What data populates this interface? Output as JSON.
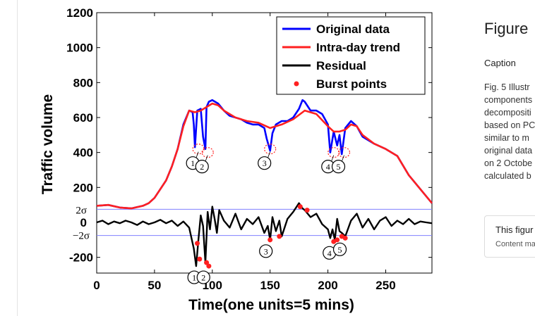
{
  "side_panel": {
    "title": "Figure",
    "caption_label": "Caption",
    "caption_lines": [
      "Fig. 5 Illustr",
      "components",
      "decompositi",
      "based on PC",
      "similar to m",
      "original data",
      "on 2 Octobe",
      "calculated b"
    ],
    "note_main": "This figur",
    "note_sub": "Content ma"
  },
  "chart_data": {
    "type": "line",
    "xlabel": "Time(one units=5 mins)",
    "ylabel": "Traffic volume",
    "xlim": [
      0,
      290
    ],
    "ylim": [
      -290,
      1200
    ],
    "xticks": [
      0,
      50,
      100,
      150,
      200,
      250
    ],
    "yticks": [
      -200,
      0,
      200,
      400,
      600,
      800,
      1000,
      1200
    ],
    "tick_labels_y": [
      "-200",
      "0",
      "200",
      "400",
      "600",
      "800",
      "1000",
      "1200"
    ],
    "tick_labels_x": [
      "0",
      "50",
      "100",
      "150",
      "200",
      "250"
    ],
    "sigma_labels": [
      "2σ",
      "−2σ"
    ],
    "sigma_level": 75,
    "legend": [
      "Original data",
      "Intra-day trend",
      "Residual",
      "Burst points"
    ],
    "legend_position": "top-right",
    "colors": {
      "original": "#0000ff",
      "trend": "#ff2020",
      "residual": "#000000",
      "burst": "#ff2020",
      "sigma": "#8080ff"
    },
    "series": [
      {
        "name": "Original data",
        "x": [
          0,
          10,
          20,
          30,
          40,
          45,
          50,
          55,
          60,
          65,
          70,
          75,
          80,
          83,
          84,
          85,
          87,
          90,
          92,
          94,
          95,
          97,
          100,
          105,
          110,
          115,
          120,
          125,
          130,
          135,
          140,
          145,
          147,
          150,
          152,
          155,
          160,
          165,
          170,
          175,
          178,
          180,
          185,
          190,
          195,
          200,
          202,
          205,
          208,
          210,
          212,
          215,
          220,
          225,
          230,
          240,
          250,
          260,
          270,
          280,
          290
        ],
        "y": [
          95,
          100,
          85,
          80,
          95,
          110,
          140,
          190,
          240,
          320,
          420,
          560,
          640,
          630,
          560,
          430,
          640,
          650,
          490,
          420,
          660,
          690,
          700,
          680,
          640,
          610,
          600,
          590,
          570,
          560,
          560,
          540,
          480,
          410,
          510,
          560,
          580,
          580,
          600,
          650,
          700,
          690,
          640,
          640,
          620,
          560,
          400,
          520,
          440,
          500,
          390,
          540,
          580,
          550,
          490,
          450,
          420,
          380,
          270,
          190,
          110
        ]
      },
      {
        "name": "Intra-day trend",
        "x": [
          0,
          10,
          20,
          30,
          40,
          45,
          50,
          55,
          60,
          65,
          70,
          75,
          80,
          85,
          90,
          95,
          100,
          105,
          110,
          120,
          130,
          140,
          150,
          160,
          170,
          180,
          190,
          200,
          205,
          210,
          215,
          220,
          225,
          230,
          240,
          250,
          260,
          270,
          280,
          290
        ],
        "y": [
          95,
          100,
          85,
          80,
          95,
          110,
          140,
          190,
          240,
          320,
          420,
          550,
          640,
          630,
          640,
          660,
          680,
          670,
          640,
          600,
          580,
          570,
          540,
          560,
          590,
          640,
          620,
          550,
          520,
          520,
          530,
          560,
          550,
          500,
          450,
          420,
          380,
          270,
          190,
          110
        ]
      },
      {
        "name": "Residual",
        "x": [
          0,
          5,
          10,
          15,
          20,
          25,
          30,
          35,
          40,
          45,
          50,
          55,
          60,
          65,
          70,
          75,
          80,
          84,
          86,
          88,
          90,
          92,
          94,
          96,
          98,
          100,
          102,
          104,
          106,
          110,
          115,
          120,
          125,
          130,
          135,
          140,
          145,
          148,
          150,
          152,
          155,
          158,
          160,
          165,
          170,
          175,
          178,
          180,
          185,
          190,
          195,
          200,
          202,
          204,
          206,
          208,
          210,
          212,
          215,
          220,
          225,
          230,
          235,
          240,
          245,
          250,
          255,
          260,
          265,
          270,
          275,
          280,
          285,
          290
        ],
        "y": [
          0,
          10,
          -10,
          5,
          -5,
          10,
          0,
          -15,
          5,
          -10,
          0,
          15,
          -5,
          10,
          -20,
          5,
          -30,
          -150,
          -250,
          -100,
          40,
          -20,
          -230,
          60,
          -40,
          90,
          20,
          -60,
          70,
          10,
          -30,
          50,
          -40,
          20,
          -10,
          30,
          -60,
          -20,
          -100,
          30,
          -50,
          10,
          -80,
          20,
          60,
          110,
          80,
          70,
          30,
          50,
          -10,
          -40,
          -90,
          -40,
          -100,
          20,
          -50,
          -60,
          -80,
          10,
          50,
          -30,
          20,
          -40,
          10,
          30,
          -20,
          10,
          -10,
          20,
          -10,
          5,
          0,
          -5
        ]
      },
      {
        "name": "Burst points",
        "x": [
          87,
          89,
          95,
          97,
          150,
          158,
          176,
          182,
          205,
          208,
          212,
          215
        ],
        "y": [
          -120,
          -210,
          -230,
          -250,
          -100,
          -80,
          90,
          70,
          -110,
          -100,
          -80,
          -90
        ]
      }
    ],
    "annotations": [
      {
        "label": "1",
        "series_x": 88,
        "upper_y": 420,
        "lower_y": -250
      },
      {
        "label": "2",
        "series_x": 96,
        "upper_y": 400,
        "lower_y": -250
      },
      {
        "label": "3",
        "series_x": 150,
        "upper_y": 420,
        "lower_y": -100
      },
      {
        "label": "4",
        "series_x": 205,
        "upper_y": 400,
        "lower_y": -110
      },
      {
        "label": "5",
        "series_x": 214,
        "upper_y": 400,
        "lower_y": -90
      }
    ]
  }
}
